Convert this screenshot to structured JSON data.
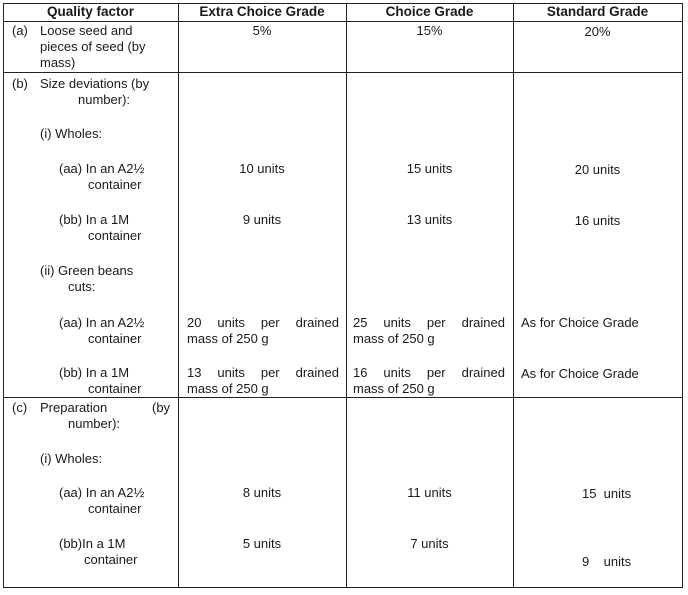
{
  "header": {
    "col1": "Quality factor",
    "col2": "Extra Choice Grade",
    "col3": "Choice Grade",
    "col4": "Standard Grade"
  },
  "row_a": {
    "letter": "(a)",
    "line1": "Loose seed and",
    "line2": "pieces of seed (by",
    "line3": "mass)",
    "extra": "5%",
    "choice": "15%",
    "standard": "20%"
  },
  "row_b": {
    "letter": "(b)",
    "line1": "Size deviations (by",
    "line2": "number):",
    "i_label": "(i) Wholes:",
    "i_aa_1": "(aa) In an A2½",
    "i_aa_2": "container",
    "i_aa_extra": "10 units",
    "i_aa_choice": "15 units",
    "i_aa_standard": "20 units",
    "i_bb_1": "(bb) In a 1M",
    "i_bb_2": "container",
    "i_bb_extra": "9 units",
    "i_bb_choice": "13 units",
    "i_bb_standard": "16 units",
    "ii_label_1": "(ii) Green beans",
    "ii_label_2": "cuts:",
    "ii_aa_1": "(aa) In an A2½",
    "ii_aa_2": "container",
    "ii_aa_extra_1": [
      "20",
      "units",
      "per",
      "drained"
    ],
    "ii_aa_extra_2": "mass of 250 g",
    "ii_aa_choice_1": [
      "25",
      "units",
      "per",
      "drained"
    ],
    "ii_aa_choice_2": "mass of 250 g",
    "ii_aa_standard": "As for Choice Grade",
    "ii_bb_1": "(bb) In a 1M",
    "ii_bb_2": "container",
    "ii_bb_extra_1": [
      "13",
      "units",
      "per",
      "drained"
    ],
    "ii_bb_extra_2": "mass of 250 g",
    "ii_bb_choice_1": [
      "16",
      "units",
      "per",
      "drained"
    ],
    "ii_bb_choice_2": "mass of 250 g",
    "ii_bb_standard": "As for Choice Grade"
  },
  "row_c": {
    "letter": "(c)",
    "line1a": "Preparation",
    "line1b": "(by",
    "line2": "number):",
    "i_label": "(i) Wholes:",
    "aa_1": "(aa) In an A2½",
    "aa_2": "container",
    "aa_extra": "8 units",
    "aa_choice": "11 units",
    "aa_standard": "15  units",
    "bb_1": "(bb)In a 1M",
    "bb_2": "container",
    "bb_extra": "5 units",
    "bb_choice": "7 units",
    "bb_standard": "9    units"
  }
}
